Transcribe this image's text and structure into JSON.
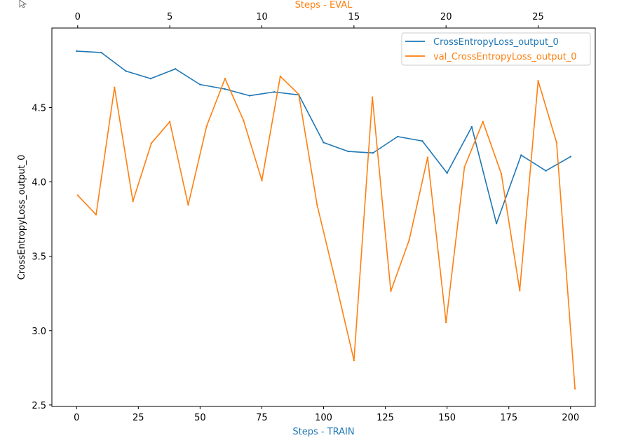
{
  "chart_data": {
    "type": "line",
    "ylabel": "CrossEntropyLoss_output_0",
    "xlabel_bottom": "Steps - TRAIN",
    "xlabel_top": "Steps - EVAL",
    "xlim_bottom": [
      -10,
      210
    ],
    "xlim_top": [
      -1.4,
      28.1
    ],
    "ylim": [
      2.49,
      5.035
    ],
    "xticks_bottom": [
      0,
      25,
      50,
      75,
      100,
      125,
      150,
      175,
      200
    ],
    "xticks_top": [
      0,
      5,
      10,
      15,
      20,
      25
    ],
    "yticks": [
      "2.5",
      "3.0",
      "3.5",
      "4.0",
      "4.5"
    ],
    "ytick_values": [
      2.5,
      3.0,
      3.5,
      4.0,
      4.5
    ],
    "grid": false,
    "legend_position": "top-right",
    "colors": {
      "train": "#1f77b4",
      "eval": "#ff7f0e"
    },
    "series": [
      {
        "name": "CrossEntropyLoss_output_0",
        "axis": "bottom",
        "color": "#1f77b4",
        "x": [
          0,
          10,
          20,
          30,
          40,
          50,
          60,
          70,
          80,
          90,
          100,
          110,
          120,
          130,
          140,
          150,
          160,
          170,
          180,
          190,
          200
        ],
        "y": [
          4.88,
          4.87,
          4.745,
          4.695,
          4.76,
          4.655,
          4.625,
          4.58,
          4.605,
          4.585,
          4.265,
          4.205,
          4.195,
          4.305,
          4.275,
          4.06,
          4.37,
          3.72,
          4.18,
          4.075,
          4.17
        ]
      },
      {
        "name": "val_CrossEntropyLoss_output_0",
        "axis": "top",
        "color": "#ff7f0e",
        "x": [
          0,
          1,
          2,
          3,
          4,
          5,
          6,
          7,
          8,
          9,
          10,
          11,
          12,
          13,
          14,
          15,
          16,
          17,
          18,
          19,
          20,
          21,
          22,
          23,
          24,
          25,
          26,
          27
        ],
        "y": [
          3.91,
          3.78,
          4.635,
          3.87,
          4.26,
          4.405,
          3.845,
          4.375,
          4.695,
          4.415,
          4.01,
          4.71,
          4.59,
          3.845,
          3.33,
          2.8,
          4.57,
          3.265,
          3.61,
          4.165,
          3.055,
          4.1,
          4.405,
          4.055,
          3.27,
          4.68,
          4.265,
          2.61
        ]
      }
    ]
  },
  "cursor_icon": "mouse-pointer-icon"
}
